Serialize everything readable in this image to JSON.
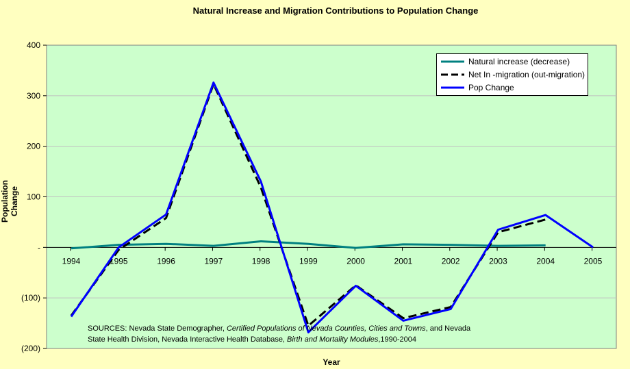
{
  "chart_data": {
    "type": "line",
    "title": "Natural Increase and Migration Contributions to Population Change",
    "xlabel": "Year",
    "ylabel": "Population Change",
    "categories": [
      "1994",
      "1995",
      "1996",
      "1997",
      "1998",
      "1999",
      "2000",
      "2001",
      "2002",
      "2003",
      "2004",
      "2005"
    ],
    "ylim": [
      -200,
      400
    ],
    "yticks": [
      400,
      300,
      200,
      100,
      0,
      -100,
      -200
    ],
    "ytick_labels": [
      "400",
      "300",
      "200",
      "100",
      "-",
      "(100)",
      "(200)"
    ],
    "grid": true,
    "legend": "top-right",
    "series": [
      {
        "name": "Natural increase (decrease)",
        "color": "#008080",
        "style": "solid",
        "values": [
          -2,
          5,
          7,
          3,
          12,
          7,
          -1,
          6,
          5,
          3,
          4,
          null
        ]
      },
      {
        "name": "Net In -migration (out-migration)",
        "color": "#000000",
        "style": "dashed",
        "values": [
          -135,
          -5,
          58,
          323,
          118,
          -155,
          -75,
          -140,
          -118,
          30,
          55,
          null
        ]
      },
      {
        "name": "Pop Change",
        "color": "#0000ff",
        "style": "solid",
        "values": [
          -137,
          0,
          65,
          326,
          130,
          -168,
          -76,
          -145,
          -122,
          35,
          64,
          0
        ]
      }
    ],
    "annotation": {
      "line1_a": "SOURCES: Nevada State Demographer, ",
      "line1_b": "Certified Populations of Nevada Counties, Cities and Towns",
      "line1_c": ", and Nevada",
      "line2_a": "State Health Division, Nevada Interactive Health Database, ",
      "line2_b": "Birth and Mortality Modules",
      "line2_c": ",1990-2004"
    }
  },
  "colors": {
    "page_bg": "#ffffc0",
    "plot_bg": "#ccffcc",
    "grid": "#c0c0c0"
  }
}
